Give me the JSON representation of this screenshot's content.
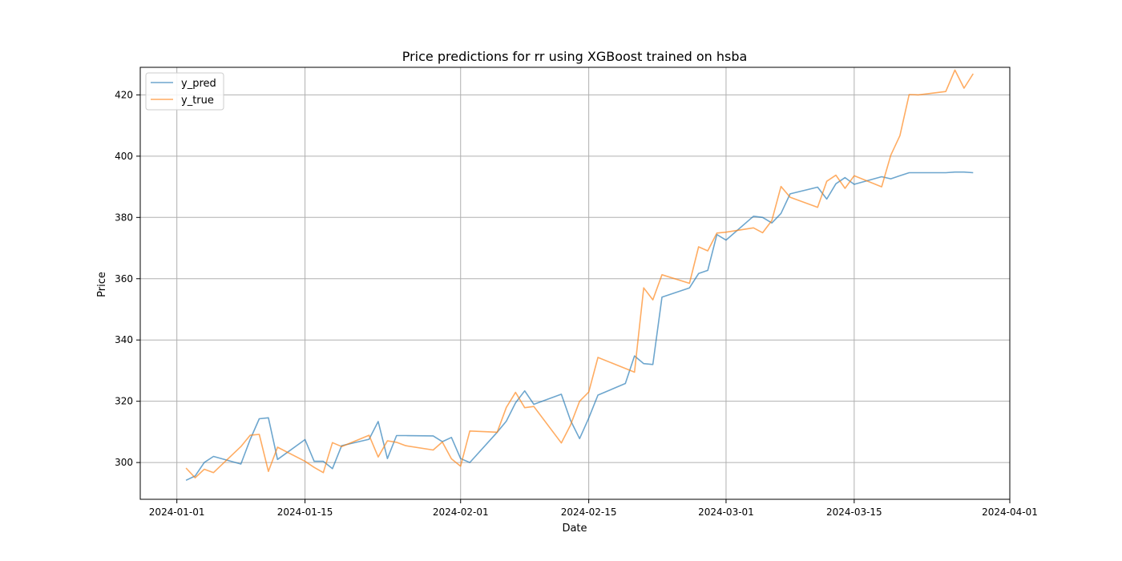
{
  "chart_data": {
    "type": "line",
    "title": "Price predictions for rr using XGBoost trained on hsba",
    "xlabel": "Date",
    "ylabel": "Price",
    "x_tick_labels": [
      "2024-01-01",
      "2024-01-15",
      "2024-02-01",
      "2024-02-15",
      "2024-03-01",
      "2024-03-15",
      "2024-04-01"
    ],
    "x_ticks": [
      "2024-01-01",
      "2024-01-15",
      "2024-02-01",
      "2024-02-15",
      "2024-03-01",
      "2024-03-15",
      "2024-04-01"
    ],
    "y_tick_labels": [
      "300",
      "320",
      "340",
      "360",
      "380",
      "400",
      "420"
    ],
    "y_ticks": [
      300,
      320,
      340,
      360,
      380,
      400,
      420
    ],
    "xlim": [
      "2023-12-28",
      "2024-04-01"
    ],
    "ylim": [
      288,
      429
    ],
    "grid": true,
    "legend_position": "top-left",
    "colors": {
      "y_pred": "#1f77b4",
      "y_true": "#ff7f0e"
    },
    "series": [
      {
        "name": "y_pred",
        "x": [
          "2024-01-02",
          "2024-01-03",
          "2024-01-04",
          "2024-01-05",
          "2024-01-08",
          "2024-01-09",
          "2024-01-10",
          "2024-01-11",
          "2024-01-12",
          "2024-01-15",
          "2024-01-16",
          "2024-01-17",
          "2024-01-18",
          "2024-01-19",
          "2024-01-22",
          "2024-01-23",
          "2024-01-24",
          "2024-01-25",
          "2024-01-26",
          "2024-01-29",
          "2024-01-30",
          "2024-01-31",
          "2024-02-01",
          "2024-02-02",
          "2024-02-05",
          "2024-02-06",
          "2024-02-07",
          "2024-02-08",
          "2024-02-09",
          "2024-02-12",
          "2024-02-13",
          "2024-02-14",
          "2024-02-15",
          "2024-02-16",
          "2024-02-19",
          "2024-02-20",
          "2024-02-21",
          "2024-02-22",
          "2024-02-23",
          "2024-02-26",
          "2024-02-27",
          "2024-02-28",
          "2024-02-29",
          "2024-03-01",
          "2024-03-04",
          "2024-03-05",
          "2024-03-06",
          "2024-03-07",
          "2024-03-08",
          "2024-03-11",
          "2024-03-12",
          "2024-03-13",
          "2024-03-14",
          "2024-03-15",
          "2024-03-18",
          "2024-03-19",
          "2024-03-20",
          "2024-03-21",
          "2024-03-22",
          "2024-03-25",
          "2024-03-26",
          "2024-03-27",
          "2024-03-28"
        ],
        "values": [
          294.2,
          295.6,
          300.0,
          302.0,
          299.5,
          307.5,
          314.3,
          314.6,
          301.0,
          307.5,
          300.4,
          300.4,
          298.0,
          305.5,
          307.6,
          313.4,
          301.3,
          308.8,
          308.8,
          308.7,
          306.8,
          308.2,
          301.3,
          300.0,
          309.9,
          313.5,
          319.5,
          323.4,
          319.0,
          322.3,
          313.8,
          307.8,
          314.5,
          322.0,
          325.8,
          334.8,
          332.3,
          332.0,
          354.0,
          357.0,
          361.7,
          362.7,
          374.4,
          372.6,
          380.4,
          380.0,
          378.2,
          381.3,
          387.7,
          389.9,
          386.0,
          391.0,
          393.0,
          390.8,
          393.3,
          392.6,
          393.6,
          394.6,
          394.6,
          394.6,
          394.8,
          394.8,
          394.6
        ]
      },
      {
        "name": "y_true",
        "x": [
          "2024-01-02",
          "2024-01-03",
          "2024-01-04",
          "2024-01-05",
          "2024-01-08",
          "2024-01-09",
          "2024-01-10",
          "2024-01-11",
          "2024-01-12",
          "2024-01-15",
          "2024-01-16",
          "2024-01-17",
          "2024-01-18",
          "2024-01-19",
          "2024-01-22",
          "2024-01-23",
          "2024-01-24",
          "2024-01-25",
          "2024-01-26",
          "2024-01-29",
          "2024-01-30",
          "2024-01-31",
          "2024-02-01",
          "2024-02-02",
          "2024-02-05",
          "2024-02-06",
          "2024-02-07",
          "2024-02-08",
          "2024-02-09",
          "2024-02-12",
          "2024-02-13",
          "2024-02-14",
          "2024-02-15",
          "2024-02-16",
          "2024-02-19",
          "2024-02-20",
          "2024-02-21",
          "2024-02-22",
          "2024-02-23",
          "2024-02-26",
          "2024-02-27",
          "2024-02-28",
          "2024-02-29",
          "2024-03-01",
          "2024-03-04",
          "2024-03-05",
          "2024-03-06",
          "2024-03-07",
          "2024-03-08",
          "2024-03-11",
          "2024-03-12",
          "2024-03-13",
          "2024-03-14",
          "2024-03-15",
          "2024-03-18",
          "2024-03-19",
          "2024-03-20",
          "2024-03-21",
          "2024-03-22",
          "2024-03-25",
          "2024-03-26",
          "2024-03-27",
          "2024-03-28"
        ],
        "values": [
          298.2,
          295.0,
          297.8,
          296.7,
          305.2,
          308.9,
          309.2,
          297.1,
          305.0,
          300.4,
          298.4,
          296.7,
          306.5,
          305.2,
          308.9,
          301.8,
          307.1,
          306.6,
          305.5,
          304.1,
          306.7,
          301.2,
          298.8,
          310.3,
          309.9,
          318.0,
          322.9,
          317.9,
          318.3,
          306.4,
          312.2,
          320.0,
          323.0,
          334.3,
          330.7,
          329.5,
          357.0,
          353.1,
          361.3,
          358.5,
          370.4,
          369.1,
          374.9,
          375.2,
          376.6,
          375.0,
          379.0,
          390.1,
          386.6,
          383.3,
          391.8,
          393.8,
          389.5,
          393.6,
          390.0,
          400.3,
          406.7,
          420.1,
          420.0,
          421.1,
          428.1,
          422.2,
          426.9
        ]
      }
    ]
  }
}
